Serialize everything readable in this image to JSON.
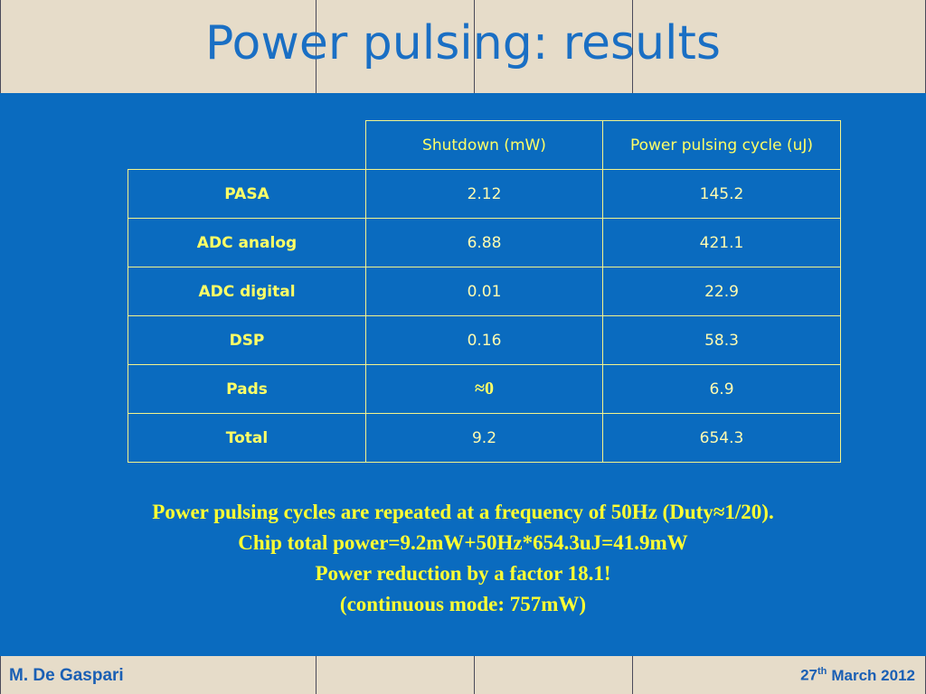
{
  "title": "Power pulsing: results",
  "table": {
    "header": [
      "Shutdown (mW)",
      "Power pulsing cycle (uJ)"
    ],
    "rows": [
      [
        "PASA",
        "2.12",
        "145.2"
      ],
      [
        "ADC analog",
        "6.88",
        "421.1"
      ],
      [
        "ADC digital",
        "0.01",
        "22.9"
      ],
      [
        "DSP",
        "0.16",
        "58.3"
      ],
      [
        "Pads",
        "≈0",
        "6.9"
      ],
      [
        "Total",
        "9.2",
        "654.3"
      ]
    ]
  },
  "notes": [
    "Power pulsing cycles are repeated at a frequency of 50Hz (Duty≈1/20).",
    "Chip total power=9.2mW+50Hz*654.3uJ=41.9mW",
    "Power reduction by a factor 18.1!",
    "(continuous mode: 757mW)"
  ],
  "footer": {
    "author": "M. De Gaspari",
    "date": {
      "day": "27",
      "suffix": "th",
      "rest": "March 2012"
    }
  }
}
